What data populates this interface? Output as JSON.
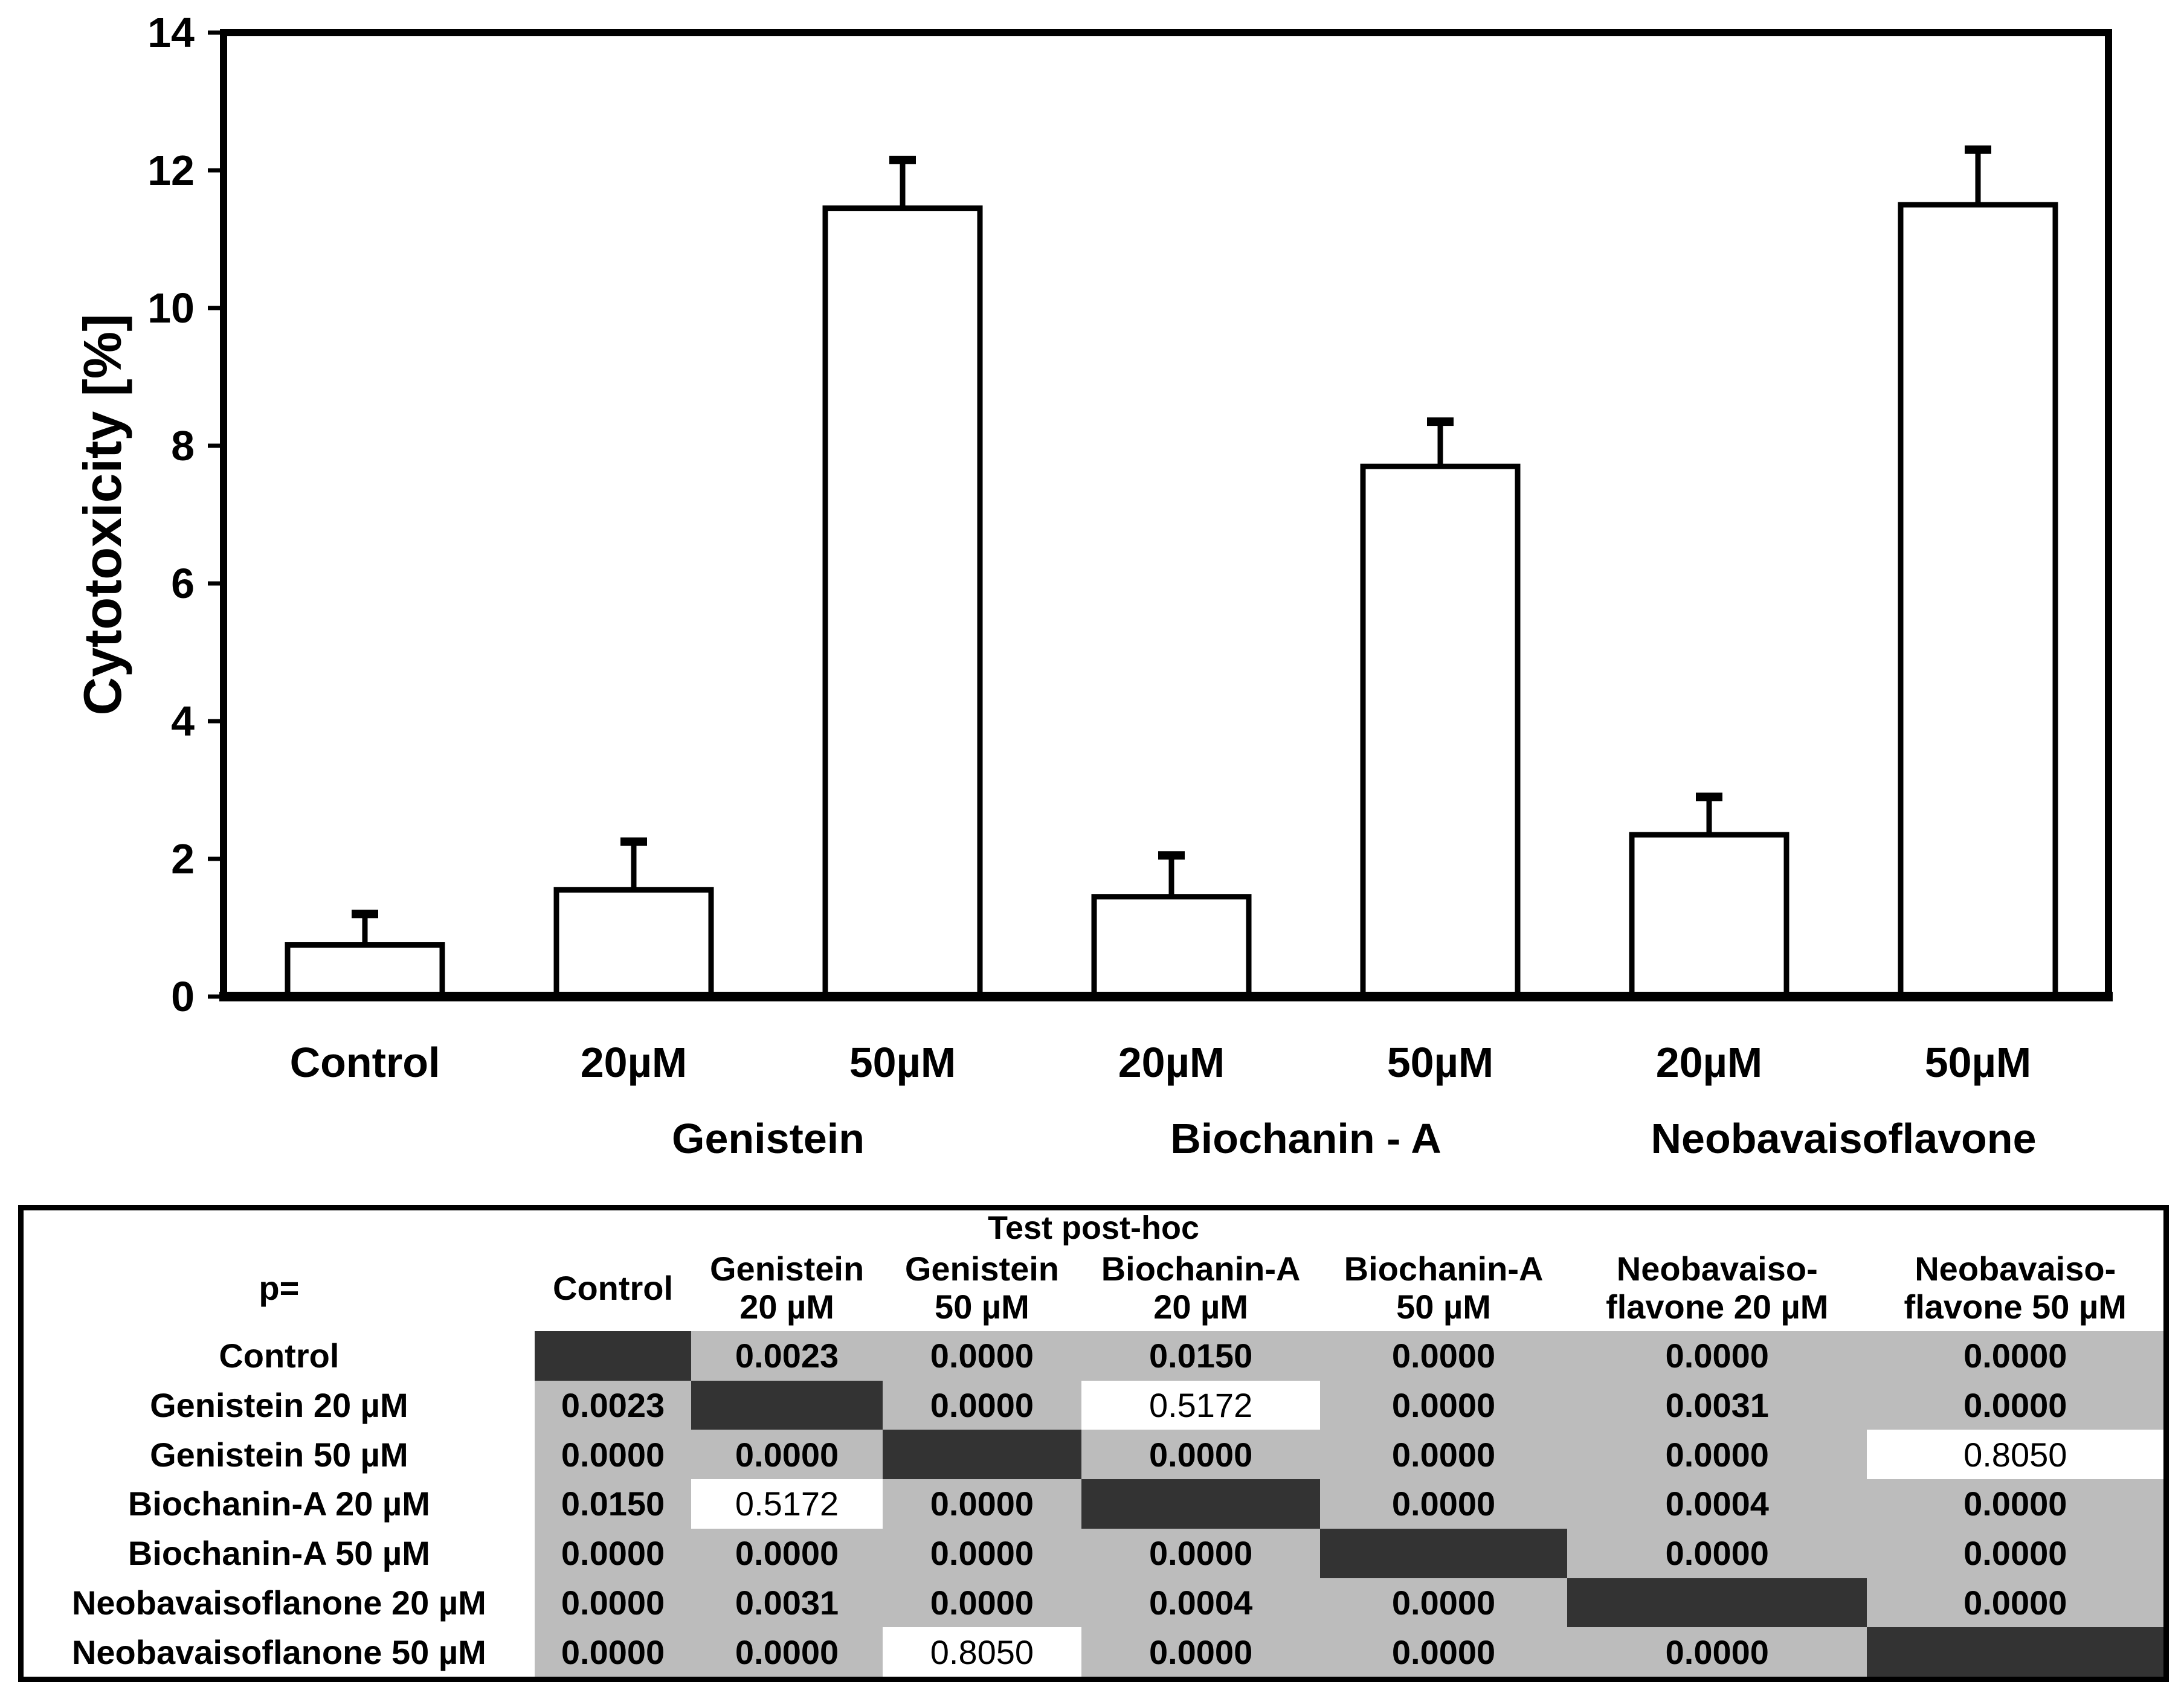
{
  "chart_data": {
    "type": "bar",
    "title": "",
    "xlabel": "",
    "ylabel": "Cytotoxicity [%]",
    "ylim": [
      0,
      14
    ],
    "yticks": [
      0,
      2,
      4,
      6,
      8,
      10,
      12,
      14
    ],
    "grid": false,
    "legend": false,
    "categories": [
      "Control",
      "20µM",
      "50µM",
      "20µM",
      "50µM",
      "20µM",
      "50µM"
    ],
    "series": [
      {
        "name": "Cytotoxicity [%]",
        "values": [
          0.75,
          1.55,
          11.45,
          1.45,
          7.7,
          2.35,
          11.5
        ],
        "errors": [
          0.45,
          0.7,
          0.7,
          0.6,
          0.65,
          0.55,
          0.8
        ]
      }
    ],
    "group_labels": [
      {
        "label": "Genistein",
        "bars": [
          1,
          2
        ]
      },
      {
        "label": "Biochanin - A",
        "bars": [
          3,
          4
        ]
      },
      {
        "label": "Neobavaisoflavone",
        "bars": [
          5,
          6
        ]
      }
    ],
    "bar_fill": "#ffffff",
    "bar_stroke": "#000000"
  },
  "table": {
    "title": "Test post-hoc",
    "corner_label": "p=",
    "col_headers": [
      [
        "Control"
      ],
      [
        "Genistein",
        "20 µM"
      ],
      [
        "Genistein",
        "50 µM"
      ],
      [
        "Biochanin-A",
        "20 µM"
      ],
      [
        "Biochanin-A",
        "50 µM"
      ],
      [
        "Neobavaiso-",
        "flavone 20 µM"
      ],
      [
        "Neobavaiso-",
        "flavone 50 µM"
      ]
    ],
    "row_headers": [
      "Control",
      "Genistein 20 µM",
      "Genistein 50 µM",
      "Biochanin-A 20 µM",
      "Biochanin-A 50 µM",
      "Neobavaisoflanone 20 µM",
      "Neobavaisoflanone 50 µM"
    ],
    "cells": [
      [
        null,
        "0.0023",
        "0.0000",
        "0.0150",
        "0.0000",
        "0.0000",
        "0.0000"
      ],
      [
        "0.0023",
        null,
        "0.0000",
        "0.5172",
        "0.0000",
        "0.0031",
        "0.0000"
      ],
      [
        "0.0000",
        "0.0000",
        null,
        "0.0000",
        "0.0000",
        "0.0000",
        "0.8050"
      ],
      [
        "0.0150",
        "0.5172",
        "0.0000",
        null,
        "0.0000",
        "0.0004",
        "0.0000"
      ],
      [
        "0.0000",
        "0.0000",
        "0.0000",
        "0.0000",
        null,
        "0.0000",
        "0.0000"
      ],
      [
        "0.0000",
        "0.0031",
        "0.0000",
        "0.0004",
        "0.0000",
        null,
        "0.0000"
      ],
      [
        "0.0000",
        "0.0000",
        "0.8050",
        "0.0000",
        "0.0000",
        "0.0000",
        null
      ]
    ],
    "highlight_cells": [
      [
        1,
        3
      ],
      [
        3,
        1
      ],
      [
        2,
        6
      ],
      [
        6,
        2
      ]
    ],
    "colors": {
      "cell_bg": "#bcbcbc",
      "diagonal_bg": "#333333",
      "highlight_bg": "#ffffff",
      "text": "#000000"
    }
  }
}
